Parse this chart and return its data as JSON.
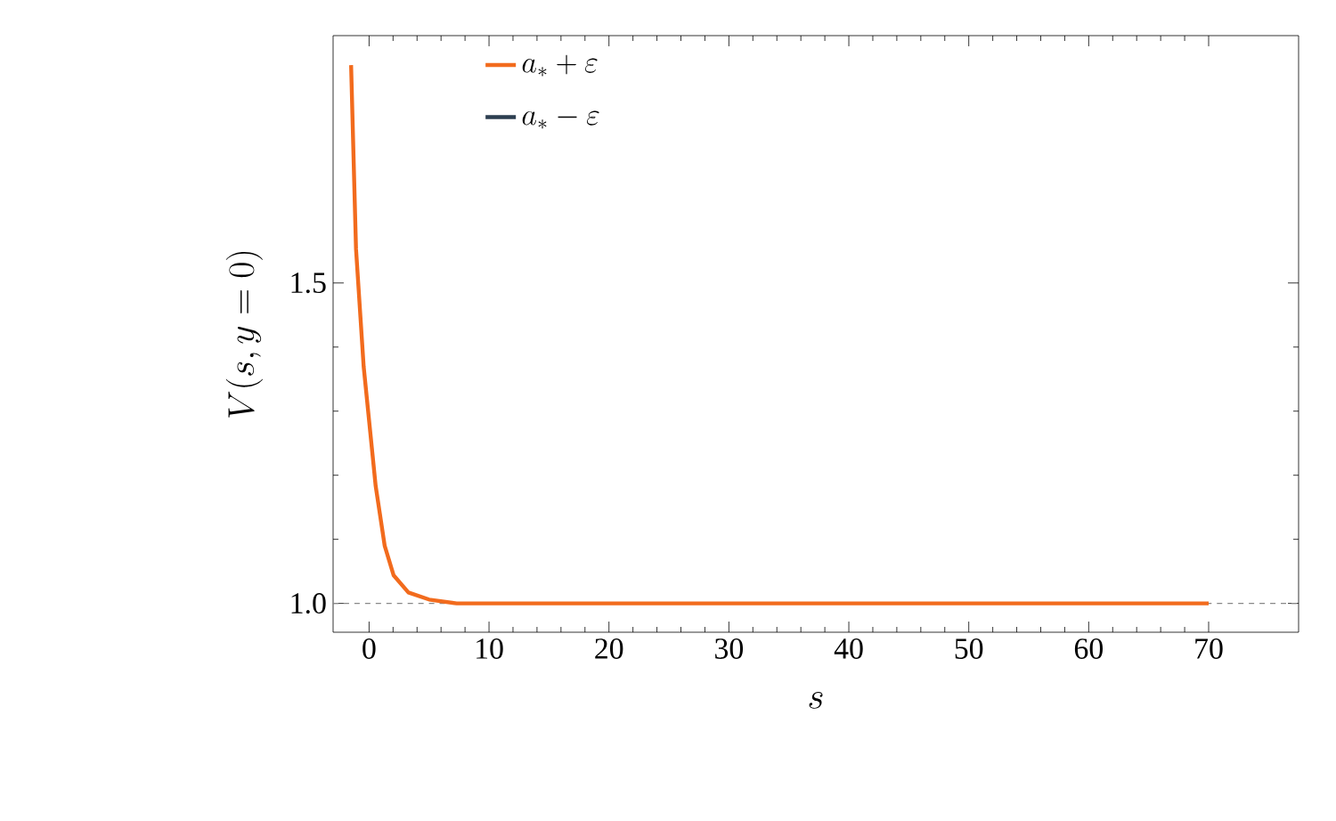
{
  "chart_data": {
    "type": "line",
    "xlabel": "s",
    "ylabel": "V(s, y = 0)",
    "x": [
      -1.5,
      -1.09,
      -0.45,
      0.55,
      1.3,
      2.04,
      3.28,
      5.0,
      7.3,
      10,
      20,
      30,
      40,
      50,
      60,
      70
    ],
    "series": [
      {
        "name": "a_* + \\varepsilon",
        "color": "#f26b1d",
        "values": [
          1.84,
          1.553,
          1.369,
          1.183,
          1.09,
          1.044,
          1.017,
          1.006,
          1.0,
          1.0,
          1.0,
          1.0,
          1.0,
          1.0,
          1.0,
          1.0
        ]
      },
      {
        "name": "a_* - \\varepsilon",
        "color": "#2c3e50",
        "values": [
          null,
          null,
          null,
          null,
          null,
          null,
          null,
          null,
          null,
          null,
          null,
          null,
          null,
          null,
          null,
          null
        ]
      }
    ],
    "xlim": [
      -3,
      77.5
    ],
    "ylim": [
      0.955,
      1.886
    ],
    "xticks": [
      0,
      10,
      20,
      30,
      40,
      50,
      60,
      70
    ],
    "yticks": [
      {
        "value": 1.0,
        "label": "1.0"
      },
      {
        "value": 1.5,
        "label": "1.5"
      }
    ],
    "ref_lines": [
      {
        "axis": "y",
        "value": 1.0,
        "color": "#888888",
        "line_style": "dashed"
      }
    ],
    "legend": "top left",
    "grid": false,
    "line_style": "solid",
    "marker": "none"
  }
}
